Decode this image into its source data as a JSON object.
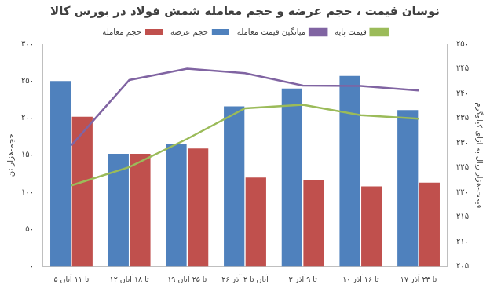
{
  "chart_data": {
    "type": "bar",
    "title": "نوسان قیمت ، حجم عرضه و حجم معامله شمش فولاد در بورس کالا",
    "y_label": "حجم-هزار تن",
    "y2_label": "قیمت-هزار ریال به ازای کیلوگرم",
    "categories": [
      "۵ تا ۱۱ آبان",
      "۱۲ تا ۱۸ آبان",
      "۱۹ تا ۲۵ آبان",
      "۲۶ آبان تا ۲ آذر",
      "۳ تا ۹ آذر",
      "۱۰ تا ۱۶ آذر",
      "۱۷ تا ۲۳ آذر"
    ],
    "series": [
      {
        "name": "حجم عرضه",
        "type": "bar",
        "color": "#4f81bd",
        "values": [
          250,
          152,
          165,
          216,
          240,
          257,
          211
        ]
      },
      {
        "name": "حجم معامله",
        "type": "bar",
        "color": "#c0504d",
        "values": [
          202,
          152,
          159,
          120,
          117,
          108,
          113
        ]
      },
      {
        "name": "قیمت پایه",
        "type": "line",
        "axis": "y2",
        "color": "#9bbb59",
        "marker": "none",
        "values": [
          221.4,
          225.1,
          230.8,
          237.0,
          237.7,
          235.6,
          234.9
        ]
      },
      {
        "name": "میانگین قیمت معامله",
        "type": "line",
        "axis": "y2",
        "color": "#8064a2",
        "marker": "none",
        "values": [
          229.5,
          242.7,
          245.0,
          244.1,
          241.6,
          241.5,
          240.6
        ]
      }
    ],
    "ylim": [
      0,
      300
    ],
    "yticks": [
      {
        "value": 0,
        "label": "۰"
      },
      {
        "value": 50,
        "label": "۵۰"
      },
      {
        "value": 100,
        "label": "۱۰۰"
      },
      {
        "value": 150,
        "label": "۱۵۰"
      },
      {
        "value": 200,
        "label": "۲۰۰"
      },
      {
        "value": 250,
        "label": "۲۵۰"
      },
      {
        "value": 300,
        "label": "۳۰۰"
      }
    ],
    "y2lim": [
      205,
      250
    ],
    "y2ticks": [
      {
        "value": 205,
        "label": "۲۰۵"
      },
      {
        "value": 210,
        "label": "۲۱۰"
      },
      {
        "value": 215,
        "label": "۲۱۵"
      },
      {
        "value": 220,
        "label": "۲۲۰"
      },
      {
        "value": 225,
        "label": "۲۲۵"
      },
      {
        "value": 230,
        "label": "۲۳۰"
      },
      {
        "value": 235,
        "label": "۲۳۵"
      },
      {
        "value": 240,
        "label": "۲۴۰"
      },
      {
        "value": 245,
        "label": "۲۴۵"
      },
      {
        "value": 250,
        "label": "۲۵۰"
      }
    ],
    "grid": false,
    "legend": "top"
  }
}
